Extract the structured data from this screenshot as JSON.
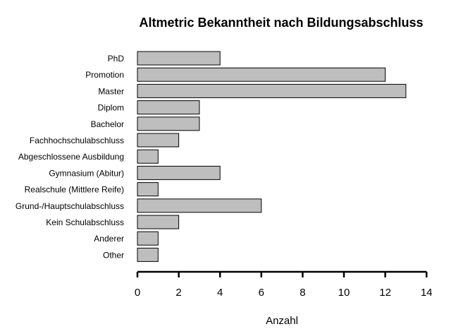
{
  "chart_data": {
    "type": "bar",
    "orientation": "horizontal",
    "title": "Altmetric Bekanntheit nach Bildungsabschluss",
    "xlabel": "Anzahl",
    "ylabel": "",
    "categories": [
      "PhD",
      "Promotion",
      "Master",
      "Diplom",
      "Bachelor",
      "Fachhochschulabschluss",
      "Abgeschlossene Ausbildung",
      "Gymnasium (Abitur)",
      "Realschule (Mittlere Reife)",
      "Grund-/Hauptschulabschluss",
      "Kein Schulabschluss",
      "Anderer",
      "Other"
    ],
    "values": [
      4,
      12,
      13,
      3,
      3,
      2,
      1,
      4,
      1,
      6,
      2,
      1,
      1
    ],
    "xlim": [
      0,
      14
    ],
    "xticks": [
      "0",
      "2",
      "4",
      "6",
      "8",
      "10",
      "12",
      "14"
    ],
    "grid": false,
    "legend": "none",
    "bar_color": "#bebebe",
    "edge_color": "#000000"
  }
}
